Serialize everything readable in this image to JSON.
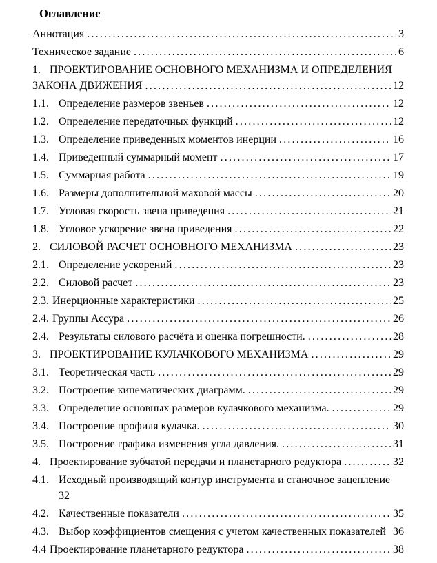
{
  "page": {
    "background_color": "#ffffff",
    "text_color": "#000000"
  },
  "toc": {
    "heading": "Оглавление",
    "entries": [
      {
        "variant": "plain",
        "num": "",
        "title": "Аннотация",
        "page": "3"
      },
      {
        "variant": "plain",
        "num": "",
        "title": "Техническое задание",
        "page": "6"
      },
      {
        "variant": "h1wrap",
        "num": "1.",
        "title": "ПРОЕКТИРОВАНИЕ ОСНОВНОГО МЕХАНИЗМА И ОПРЕДЕЛЕНИЯ",
        "title2": "ЗАКОНА ДВИЖЕНИЯ",
        "page": "12"
      },
      {
        "variant": "sub",
        "num": "1.1.",
        "title": "Определение размеров звеньев",
        "page": "12"
      },
      {
        "variant": "sub",
        "num": "1.2.",
        "title": "Определение передаточных функций",
        "page": "12"
      },
      {
        "variant": "sub",
        "num": "1.3.",
        "title": "Определение приведенных моментов инерции",
        "page": "16"
      },
      {
        "variant": "sub",
        "num": "1.4.",
        "title": "Приведенный суммарный момент",
        "page": "17"
      },
      {
        "variant": "sub",
        "num": "1.5.",
        "title": "Суммарная работа",
        "page": "19"
      },
      {
        "variant": "sub",
        "num": "1.6.",
        "title": "Размеры дополнительной маховой массы",
        "page": "20"
      },
      {
        "variant": "sub",
        "num": "1.7.",
        "title": "Угловая скорость звена приведения",
        "page": "21"
      },
      {
        "variant": "sub",
        "num": "1.8.",
        "title": "Угловое ускорение звена приведения",
        "page": "22"
      },
      {
        "variant": "h1",
        "num": "2.",
        "title": "СИЛОВОЙ РАСЧЕТ ОСНОВНОГО МЕХАНИЗМА",
        "page": "23"
      },
      {
        "variant": "sub",
        "num": "2.1.",
        "title": "Определение ускорений",
        "page": "23"
      },
      {
        "variant": "sub",
        "num": "2.2.",
        "title": "Силовой расчет",
        "page": "23"
      },
      {
        "variant": "inline",
        "num": "2.3.",
        "title": "Инерционные характеристики",
        "page": "25"
      },
      {
        "variant": "inline",
        "num": "2.4.",
        "title": "Группы Ассура",
        "page": "26"
      },
      {
        "variant": "sub",
        "num": "2.4.",
        "title": "Результаты силового расчёта и оценка погрешности.",
        "page": "28"
      },
      {
        "variant": "h1",
        "num": "3.",
        "title": "ПРОЕКТИРОВАНИЕ КУЛАЧКОВОГО МЕХАНИЗМА",
        "page": "29"
      },
      {
        "variant": "sub",
        "num": "3.1.",
        "title": "Теоретическая часть",
        "page": "29"
      },
      {
        "variant": "sub",
        "num": "3.2.",
        "title": "Построение кинематических диаграмм.",
        "page": "29"
      },
      {
        "variant": "sub",
        "num": "3.3.",
        "title": "Определение основных размеров кулачкового механизма.",
        "page": "29"
      },
      {
        "variant": "sub",
        "num": "3.4.",
        "title": "Построение профиля кулачка.",
        "page": "30"
      },
      {
        "variant": "sub",
        "num": "3.5.",
        "title": "Построение графика изменения угла давления.",
        "page": "31"
      },
      {
        "variant": "h1",
        "num": "4.",
        "title": "Проектирование зубчатой передачи и планетарного редуктора",
        "page": "32"
      },
      {
        "variant": "subpage2",
        "num": "4.1.",
        "title": "Исходный производящий контур инструмента и станочное зацепление",
        "page": "32"
      },
      {
        "variant": "sub",
        "num": "4.2.",
        "title": "Качественные показатели",
        "page": "35"
      },
      {
        "variant": "subnodots",
        "num": "4.3.",
        "title": "Выбор коэффициентов смещения с учетом качественных показателей",
        "page": "36"
      },
      {
        "variant": "inline",
        "num": "4.4",
        "title": "Проектирование планетарного редуктора",
        "page": "38"
      }
    ]
  }
}
